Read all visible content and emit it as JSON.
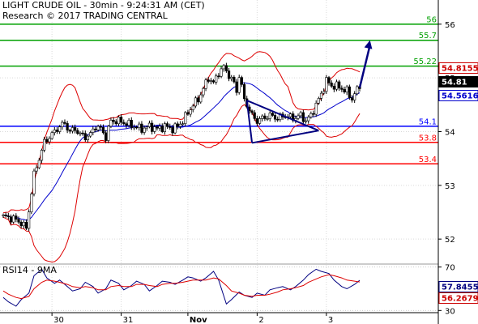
{
  "header": {
    "title": "LIGHT CRUDE OIL - 30min - 9:24:31 AM (CET)",
    "copyright": "Research © 2017 TRADING CENTRAL"
  },
  "chart_data": [
    {
      "type": "candlestick",
      "title": "LIGHT CRUDE OIL - 30min - 9:24:31 AM (CET)",
      "ylim": [
        51.55,
        56.45
      ],
      "y_ticks": [
        "56",
        "55",
        "54",
        "53",
        "52"
      ],
      "x_tick_labels": [
        "30",
        "31",
        "Nov",
        "2",
        "3"
      ],
      "grid": true,
      "colors": {
        "resistance": "#00a000",
        "pivot": "#0000ff",
        "support": "#ff0000",
        "bollinger": "#dd0000",
        "moving_average": "#0000cc",
        "triangle": "#000080",
        "arrow": "#000080",
        "price_line": "#000000"
      },
      "levels": [
        {
          "value": 56.0,
          "label": "56",
          "kind": "resistance"
        },
        {
          "value": 55.7,
          "label": "55.7",
          "kind": "resistance"
        },
        {
          "value": 55.22,
          "label": "55.22",
          "kind": "resistance"
        },
        {
          "value": 54.1,
          "label": "54.1",
          "kind": "pivot"
        },
        {
          "value": 53.8,
          "label": "53.8",
          "kind": "support"
        },
        {
          "value": 53.4,
          "label": "53.4",
          "kind": "support"
        }
      ],
      "badges": [
        {
          "value": 54.8155,
          "label": "54.8155",
          "bg": "#ffffff",
          "fg": "#cc0000",
          "border": "#cc0000"
        },
        {
          "value": 54.81,
          "label": "54.81",
          "bg": "#000000",
          "fg": "#ffffff",
          "border": "#000000"
        },
        {
          "value": 54.5616,
          "label": "54.5616",
          "bg": "#ffffff",
          "fg": "#0000cc",
          "border": "#0000cc"
        }
      ],
      "price_keypoints": [
        [
          0,
          52.42
        ],
        [
          4,
          52.38
        ],
        [
          7,
          52.3
        ],
        [
          9,
          52.2
        ],
        [
          12,
          53.2
        ],
        [
          14,
          53.5
        ],
        [
          16,
          53.8
        ],
        [
          18,
          53.9
        ],
        [
          20,
          54.0
        ],
        [
          22,
          54.1
        ],
        [
          24,
          54.15
        ],
        [
          26,
          54.0
        ],
        [
          28,
          54.05
        ],
        [
          30,
          53.95
        ],
        [
          32,
          53.9
        ],
        [
          34,
          53.95
        ],
        [
          36,
          54.1
        ],
        [
          38,
          54.05
        ],
        [
          40,
          53.9
        ],
        [
          42,
          54.2
        ],
        [
          45,
          54.2
        ],
        [
          48,
          54.15
        ],
        [
          51,
          54.1
        ],
        [
          54,
          54.05
        ],
        [
          57,
          54.1
        ],
        [
          60,
          54.05
        ],
        [
          63,
          54.1
        ],
        [
          66,
          54.05
        ],
        [
          68,
          54.1
        ],
        [
          70,
          54.2
        ],
        [
          72,
          54.35
        ],
        [
          74,
          54.5
        ],
        [
          76,
          54.6
        ],
        [
          78,
          54.8
        ],
        [
          80,
          55.0
        ],
        [
          82,
          54.9
        ],
        [
          84,
          55.1
        ],
        [
          86,
          55.2
        ],
        [
          88,
          55.05
        ],
        [
          90,
          54.9
        ],
        [
          91,
          54.75
        ],
        [
          92,
          55.05
        ],
        [
          94,
          54.6
        ],
        [
          95,
          54.5
        ],
        [
          97,
          54.3
        ],
        [
          99,
          54.2
        ],
        [
          101,
          54.25
        ],
        [
          104,
          54.3
        ],
        [
          107,
          54.25
        ],
        [
          110,
          54.3
        ],
        [
          113,
          54.25
        ],
        [
          116,
          54.3
        ],
        [
          118,
          54.2
        ],
        [
          120,
          54.3
        ],
        [
          122,
          54.5
        ],
        [
          124,
          54.7
        ],
        [
          126,
          54.95
        ],
        [
          128,
          54.85
        ],
        [
          130,
          54.85
        ],
        [
          132,
          54.8
        ],
        [
          134,
          54.75
        ],
        [
          136,
          54.6
        ],
        [
          137,
          54.72
        ],
        [
          139,
          54.8
        ]
      ],
      "forecast_arrow": [
        [
          139,
          54.82
        ],
        [
          143,
          55.7
        ]
      ]
    },
    {
      "type": "line",
      "title": "RSI14 - 9MA",
      "ylim": [
        28,
        72
      ],
      "y_ticks": [
        "70",
        "30"
      ],
      "grid": true,
      "series": [
        {
          "name": "RSI14",
          "color": "#000080",
          "values": [
            42,
            38,
            34,
            40,
            46,
            62,
            68,
            60,
            55,
            58,
            52,
            48,
            50,
            56,
            52,
            46,
            50,
            58,
            55,
            49,
            53,
            57,
            54,
            48,
            53,
            57,
            56,
            54,
            58,
            61,
            60,
            57,
            60,
            66,
            58,
            36,
            40,
            47,
            44,
            42,
            46,
            44,
            49,
            51,
            52,
            49,
            52,
            58,
            63,
            68,
            66,
            64,
            58,
            52,
            50,
            54,
            57.8455
          ]
        },
        {
          "name": "9MA",
          "color": "#dd0000",
          "values": [
            48,
            45,
            42,
            41,
            43,
            50,
            56,
            58,
            57,
            56,
            54,
            52,
            51,
            52,
            51,
            49,
            49,
            52,
            53,
            52,
            52,
            54,
            54,
            53,
            52,
            54,
            55,
            55,
            56,
            57,
            58,
            58,
            58,
            60,
            59,
            53,
            48,
            46,
            44,
            43,
            44,
            44,
            45,
            47,
            49,
            50,
            51,
            53,
            56,
            59,
            61,
            63,
            62,
            60,
            58,
            57,
            56.2679
          ]
        }
      ],
      "badges": [
        {
          "value": 57.8455,
          "label": "57.8455",
          "bg": "#ffffff",
          "fg": "#000080",
          "border": "#000080"
        },
        {
          "value": 56.2679,
          "label": "56.2679",
          "bg": "#ffffff",
          "fg": "#cc0000",
          "border": "#cc0000"
        }
      ]
    }
  ]
}
